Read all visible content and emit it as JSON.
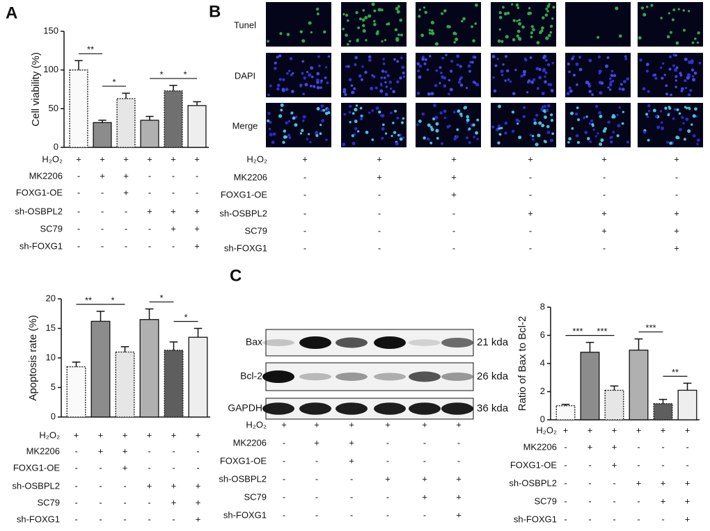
{
  "panels": [
    "A",
    "B",
    "C"
  ],
  "treatments": {
    "rows": [
      {
        "label": "H₂O₂",
        "marks": [
          "+",
          "+",
          "+",
          "+",
          "+",
          "+"
        ]
      },
      {
        "label": "MK2206",
        "marks": [
          "-",
          "+",
          "+",
          "-",
          "-",
          "-"
        ]
      },
      {
        "label": "FOXG1-OE",
        "marks": [
          "-",
          "-",
          "+",
          "-",
          "-",
          "-"
        ]
      },
      {
        "label": "sh-OSBPL2",
        "marks": [
          "-",
          "-",
          "-",
          "+",
          "+",
          "+"
        ]
      },
      {
        "label": "SC79",
        "marks": [
          "-",
          "-",
          "-",
          "-",
          "+",
          "+"
        ]
      },
      {
        "label": "sh-FOXG1",
        "marks": [
          "-",
          "-",
          "-",
          "-",
          "-",
          "+"
        ]
      }
    ]
  },
  "microscopy": {
    "rows": [
      "Tunel",
      "DAPI",
      "Merge"
    ]
  },
  "western_blot": {
    "rows": [
      {
        "protein": "Bax",
        "size": "21 kda"
      },
      {
        "protein": "Bcl-2",
        "size": "26 kda"
      },
      {
        "protein": "GAPDH",
        "size": "36 kda"
      }
    ]
  },
  "chart_data": [
    {
      "type": "bar",
      "ylabel": "Cell viability (%)",
      "categories": [
        null,
        null,
        null,
        null,
        null,
        null
      ],
      "values": [
        100,
        32,
        63,
        35,
        73,
        54
      ],
      "errors": [
        12,
        3,
        7,
        5,
        7,
        5
      ],
      "colors": [
        "#fafafa",
        "#8c8c8c",
        "#e6e6e6",
        "#b0b0b0",
        "#707070",
        "#eeeeee"
      ],
      "ylim": [
        0,
        150
      ],
      "yticks": [
        0,
        50,
        100,
        150
      ],
      "significance": [
        {
          "from": 0,
          "to": 1,
          "label": "**"
        },
        {
          "from": 1,
          "to": 2,
          "label": "*"
        },
        {
          "from": 3,
          "to": 4,
          "label": "*"
        },
        {
          "from": 4,
          "to": 5,
          "label": "*"
        }
      ]
    },
    {
      "type": "bar",
      "ylabel": "Apoptosis rate (%)",
      "categories": [
        null,
        null,
        null,
        null,
        null,
        null
      ],
      "values": [
        8.5,
        16.2,
        11,
        16.5,
        11.3,
        13.5
      ],
      "errors": [
        0.8,
        1.7,
        0.9,
        1.8,
        1.4,
        1.5
      ],
      "colors": [
        "#fafafa",
        "#8c8c8c",
        "#e6e6e6",
        "#b0b0b0",
        "#5e5e5e",
        "#eeeeee"
      ],
      "ylim": [
        0,
        20
      ],
      "yticks": [
        0,
        5,
        10,
        15,
        20
      ],
      "significance": [
        {
          "from": 0,
          "to": 1,
          "label": "**"
        },
        {
          "from": 1,
          "to": 2,
          "label": "*"
        },
        {
          "from": 3,
          "to": 4,
          "label": "*"
        },
        {
          "from": 4,
          "to": 5,
          "label": "*"
        }
      ]
    },
    {
      "type": "bar",
      "ylabel": "Ratio of Bax to Bcl-2",
      "categories": [
        null,
        null,
        null,
        null,
        null,
        null
      ],
      "values": [
        1.0,
        4.8,
        2.1,
        4.95,
        1.15,
        2.1
      ],
      "errors": [
        0.1,
        0.7,
        0.3,
        0.8,
        0.3,
        0.5
      ],
      "colors": [
        "#fafafa",
        "#8c8c8c",
        "#e6e6e6",
        "#b0b0b0",
        "#5e5e5e",
        "#eeeeee"
      ],
      "ylim": [
        0,
        8
      ],
      "yticks": [
        0,
        2,
        4,
        6,
        8
      ],
      "significance": [
        {
          "from": 0,
          "to": 1,
          "label": "***"
        },
        {
          "from": 1,
          "to": 2,
          "label": "***"
        },
        {
          "from": 3,
          "to": 4,
          "label": "***"
        },
        {
          "from": 4,
          "to": 5,
          "label": "**"
        }
      ]
    }
  ]
}
